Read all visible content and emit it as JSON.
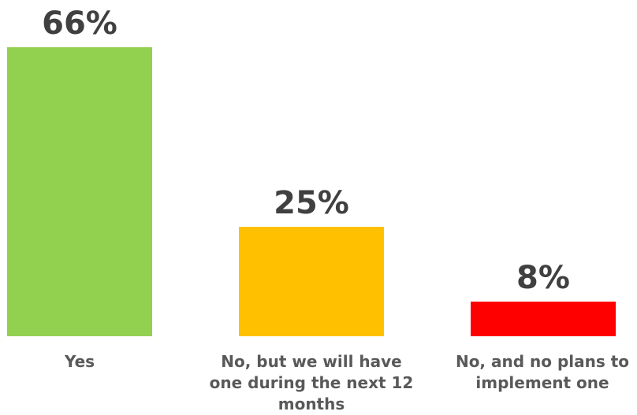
{
  "chart_data": {
    "type": "bar",
    "categories": [
      "Yes",
      "No, but we will have one during the next 12 months",
      "No, and no plans to implement one"
    ],
    "values": [
      66,
      25,
      8
    ],
    "value_labels": [
      "66%",
      "25%",
      "8%"
    ],
    "colors": [
      "#92d050",
      "#ffc000",
      "#ff0000"
    ],
    "title": "",
    "xlabel": "",
    "ylabel": "",
    "grid": false,
    "legend": "none"
  }
}
